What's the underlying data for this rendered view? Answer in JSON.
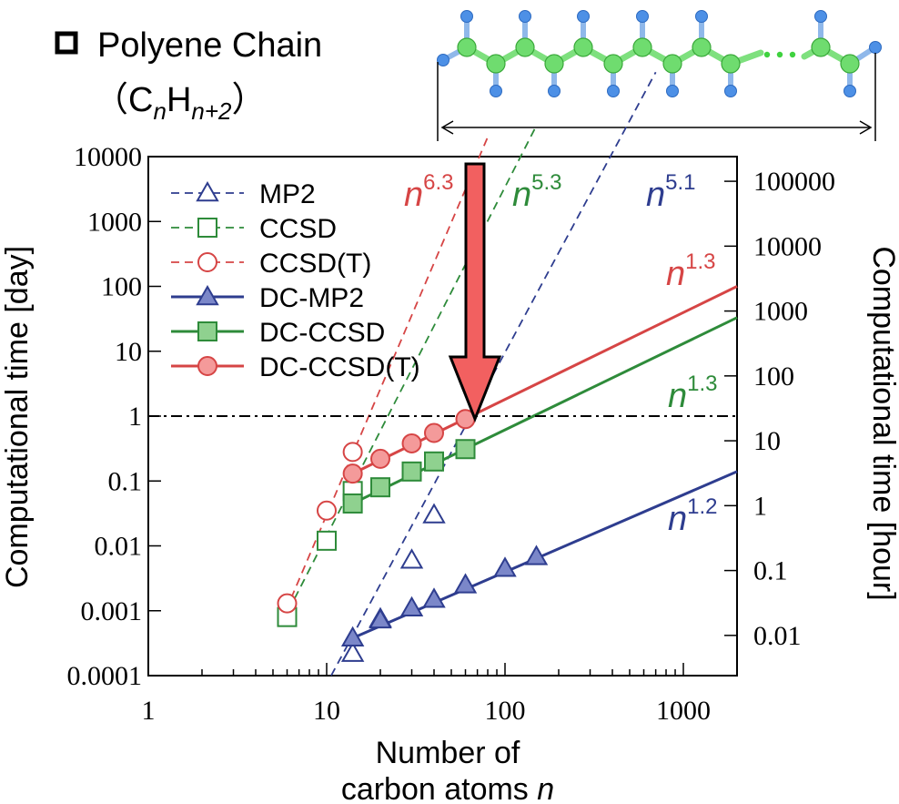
{
  "header": {
    "title": "Polyene Chain",
    "formula_open": "（",
    "formula_c": "C",
    "formula_n": "n",
    "formula_h": "H",
    "formula_sub": "n+2",
    "formula_close": "）"
  },
  "chart_data": {
    "type": "scatter",
    "xscale": "log",
    "yscale": "log",
    "xlim": [
      1,
      2000
    ],
    "ylim": [
      0.0001,
      10000
    ],
    "y2lim_hour": [
      0.0024,
      240000
    ],
    "xlabel_line1": "Number of",
    "xlabel_line2": "carbon atoms",
    "xlabel_var": "n",
    "ylabel": "Computational time [day]",
    "y2label": "Computational time [hour]",
    "x_ticks": [
      "1",
      "10",
      "100",
      "1000"
    ],
    "y_ticks": [
      "0.0001",
      "0.001",
      "0.01",
      "0.1",
      "1",
      "10",
      "100",
      "1000",
      "10000"
    ],
    "y2_ticks": [
      "0.01",
      "0.1",
      "1",
      "10",
      "100",
      "1000",
      "10000",
      "100000"
    ],
    "reference_line": {
      "y": 1,
      "style": "dash-dot"
    },
    "series": [
      {
        "name": "MP2",
        "color": "#2e3d8f",
        "marker": "triangle-open",
        "line": "dashed",
        "x": [
          14,
          20,
          30,
          40
        ],
        "y": [
          0.00022,
          0.00075,
          0.006,
          0.03
        ],
        "fit": {
          "x": [
            10.6,
            700
          ],
          "y": [
            0.0001,
            200000
          ]
        }
      },
      {
        "name": "CCSD",
        "color": "#2e8b3a",
        "marker": "square-open",
        "line": "dashed",
        "x": [
          6,
          10,
          14
        ],
        "y": [
          0.0008,
          0.012,
          0.07
        ],
        "fit": {
          "x": [
            6.1,
            150
          ],
          "y": [
            0.001,
            30000
          ]
        }
      },
      {
        "name": "CCSD(T)",
        "color": "#d64545",
        "marker": "circle-open",
        "line": "dashed",
        "x": [
          6,
          10,
          14
        ],
        "y": [
          0.0013,
          0.035,
          0.28
        ],
        "fit": {
          "x": [
            5.9,
            80
          ],
          "y": [
            0.001,
            20000
          ]
        }
      },
      {
        "name": "DC-MP2",
        "color": "#2e3d8f",
        "marker": "triangle-filled",
        "line": "solid",
        "fill": "#7b87c9",
        "x": [
          14,
          20,
          30,
          40,
          60,
          100,
          150
        ],
        "y": [
          0.00038,
          0.00072,
          0.0011,
          0.0015,
          0.0025,
          0.0045,
          0.0068
        ],
        "fit": {
          "x": [
            14,
            2000
          ],
          "y": [
            0.00038,
            0.14
          ]
        }
      },
      {
        "name": "DC-CCSD",
        "color": "#2e8b3a",
        "marker": "square-filled",
        "line": "solid",
        "fill": "#8fd18f",
        "x": [
          14,
          20,
          30,
          40,
          60
        ],
        "y": [
          0.045,
          0.08,
          0.14,
          0.2,
          0.31
        ],
        "fit": {
          "x": [
            14,
            2000
          ],
          "y": [
            0.045,
            33
          ]
        }
      },
      {
        "name": "DC-CCSD(T)",
        "color": "#d64545",
        "marker": "circle-filled",
        "line": "solid",
        "fill": "#f49a9a",
        "x": [
          14,
          20,
          30,
          40,
          60
        ],
        "y": [
          0.13,
          0.22,
          0.38,
          0.55,
          0.9
        ],
        "fit": {
          "x": [
            14,
            2000
          ],
          "y": [
            0.13,
            100
          ]
        }
      }
    ],
    "scaling_labels": [
      {
        "text": "n",
        "exp": "6.3",
        "color": "#d64545"
      },
      {
        "text": "n",
        "exp": "5.3",
        "color": "#2e8b3a"
      },
      {
        "text": "n",
        "exp": "5.1",
        "color": "#2e3d8f"
      },
      {
        "text": "n",
        "exp": "1.3",
        "color": "#d64545"
      },
      {
        "text": "n",
        "exp": "1.3",
        "color": "#2e8b3a"
      },
      {
        "text": "n",
        "exp": "1.2",
        "color": "#2e3d8f"
      }
    ],
    "arrow_color": "#f26060"
  }
}
